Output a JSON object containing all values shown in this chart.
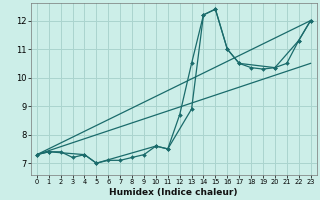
{
  "background_color": "#cceee8",
  "grid_color": "#aad4ce",
  "line_color": "#1a6b6b",
  "xlabel": "Humidex (Indice chaleur)",
  "ylabel_ticks": [
    7,
    8,
    9,
    10,
    11,
    12
  ],
  "xlim": [
    -0.5,
    23.5
  ],
  "ylim": [
    6.6,
    12.6
  ],
  "xticks": [
    0,
    1,
    2,
    3,
    4,
    5,
    6,
    7,
    8,
    9,
    10,
    11,
    12,
    13,
    14,
    15,
    16,
    17,
    18,
    19,
    20,
    21,
    22,
    23
  ],
  "line1_x": [
    0,
    1,
    2,
    3,
    4,
    5,
    6,
    7,
    8,
    9,
    10,
    11,
    12,
    13,
    14,
    15,
    16,
    17,
    18,
    19,
    20,
    21,
    22,
    23
  ],
  "line1_y": [
    7.3,
    7.4,
    7.4,
    7.2,
    7.3,
    7.0,
    7.1,
    7.1,
    7.2,
    7.3,
    7.6,
    7.5,
    8.7,
    10.5,
    12.2,
    12.4,
    11.0,
    10.5,
    10.35,
    10.3,
    10.35,
    10.5,
    11.3,
    12.0
  ],
  "line2_x": [
    0,
    1,
    4,
    5,
    10,
    11,
    13,
    14,
    15,
    16,
    17,
    20,
    22,
    23
  ],
  "line2_y": [
    7.3,
    7.4,
    7.3,
    7.0,
    7.6,
    7.5,
    8.9,
    12.2,
    12.4,
    11.0,
    10.5,
    10.35,
    11.3,
    12.0
  ],
  "line3_x": [
    0,
    23
  ],
  "line3_y": [
    7.3,
    12.0
  ],
  "line4_x": [
    0,
    23
  ],
  "line4_y": [
    7.3,
    10.5
  ]
}
